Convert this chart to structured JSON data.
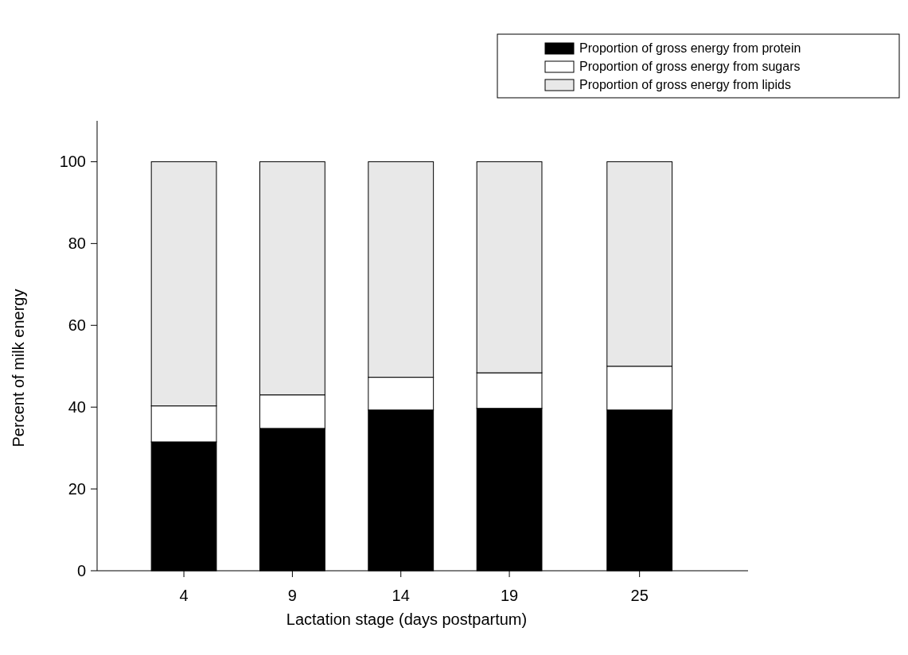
{
  "chart_data": {
    "type": "bar",
    "stacked": true,
    "x": [
      4,
      9,
      14,
      19,
      25
    ],
    "xlim": [
      0,
      30
    ],
    "xticks": [
      4,
      9,
      14,
      19,
      25
    ],
    "ylim": [
      0,
      110
    ],
    "yticks": [
      0,
      20,
      40,
      60,
      80,
      100
    ],
    "xlabel": "Lactation stage (days postpartum)",
    "ylabel": "Percent of milk energy",
    "legend": "top right",
    "series": [
      {
        "name": "Proportion of gross energy from protein",
        "color": "#000000",
        "values": [
          31.5,
          34.8,
          39.3,
          39.7,
          39.3
        ]
      },
      {
        "name": "Proportion of gross energy from sugars",
        "color": "#ffffff",
        "values": [
          8.8,
          8.2,
          8.0,
          8.7,
          10.7
        ]
      },
      {
        "name": "Proportion of gross energy from lipids",
        "color": "#e8e8e8",
        "values": [
          59.7,
          57.0,
          52.7,
          51.6,
          50.0
        ]
      }
    ]
  }
}
